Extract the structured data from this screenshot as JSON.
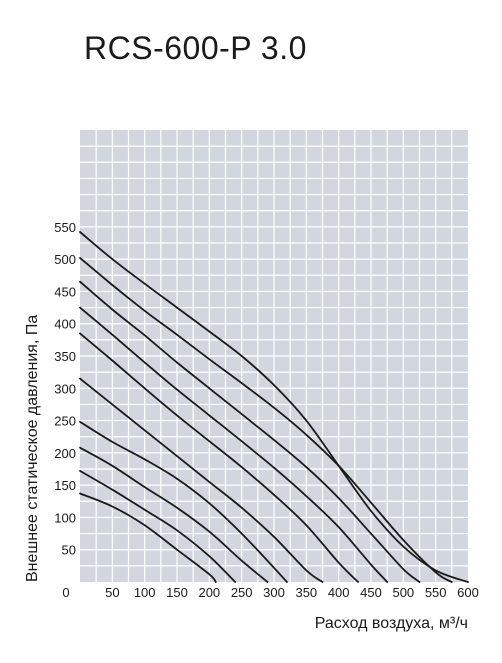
{
  "chart_data": {
    "type": "line",
    "title": "RCS-600-P 3.0",
    "xlabel": "Расход воздуха, м³/ч",
    "ylabel": "Внешнее статическое давления, Па",
    "xlim": [
      0,
      600
    ],
    "ylim": [
      0,
      700
    ],
    "x_ticks": [
      "0",
      "50",
      "100",
      "150",
      "200",
      "250",
      "300",
      "350",
      "400",
      "450",
      "500",
      "550",
      "600"
    ],
    "y_ticks": [
      "50",
      "100",
      "150",
      "200",
      "250",
      "300",
      "350",
      "400",
      "450",
      "500",
      "550"
    ],
    "grid": true,
    "background_color": "#d2d6de",
    "line_color": "#1a1a1a",
    "series": [
      {
        "x": [
          0,
          50,
          100,
          150,
          200,
          210
        ],
        "y": [
          137,
          117,
          88,
          50,
          12,
          0
        ]
      },
      {
        "x": [
          0,
          50,
          100,
          150,
          200,
          240
        ],
        "y": [
          172,
          143,
          112,
          80,
          40,
          0
        ]
      },
      {
        "x": [
          0,
          50,
          100,
          150,
          200,
          250,
          290
        ],
        "y": [
          208,
          180,
          147,
          115,
          78,
          33,
          0
        ]
      },
      {
        "x": [
          0,
          50,
          100,
          150,
          200,
          250,
          300,
          320
        ],
        "y": [
          248,
          217,
          190,
          160,
          122,
          75,
          22,
          0
        ]
      },
      {
        "x": [
          0,
          50,
          100,
          150,
          200,
          250,
          300,
          350,
          375
        ],
        "y": [
          315,
          275,
          235,
          195,
          155,
          115,
          70,
          18,
          0
        ]
      },
      {
        "x": [
          0,
          50,
          100,
          150,
          200,
          250,
          300,
          350,
          400,
          430
        ],
        "y": [
          385,
          343,
          300,
          258,
          218,
          178,
          135,
          88,
          30,
          0
        ]
      },
      {
        "x": [
          0,
          50,
          100,
          150,
          200,
          250,
          300,
          350,
          400,
          450,
          475
        ],
        "y": [
          425,
          383,
          340,
          298,
          258,
          218,
          177,
          133,
          85,
          27,
          0
        ]
      },
      {
        "x": [
          0,
          50,
          100,
          150,
          200,
          250,
          300,
          350,
          400,
          450,
          500,
          525
        ],
        "y": [
          465,
          422,
          382,
          340,
          300,
          260,
          220,
          178,
          130,
          75,
          20,
          0
        ]
      },
      {
        "x": [
          0,
          50,
          100,
          150,
          200,
          250,
          300,
          350,
          400,
          450,
          500,
          550,
          575
        ],
        "y": [
          502,
          460,
          420,
          383,
          345,
          308,
          270,
          228,
          180,
          123,
          65,
          15,
          0
        ]
      },
      {
        "x": [
          0,
          50,
          100,
          150,
          200,
          250,
          300,
          350,
          400,
          450,
          500,
          550,
          600
        ],
        "y": [
          542,
          500,
          462,
          425,
          388,
          350,
          305,
          250,
          180,
          110,
          55,
          18,
          0
        ]
      }
    ]
  }
}
